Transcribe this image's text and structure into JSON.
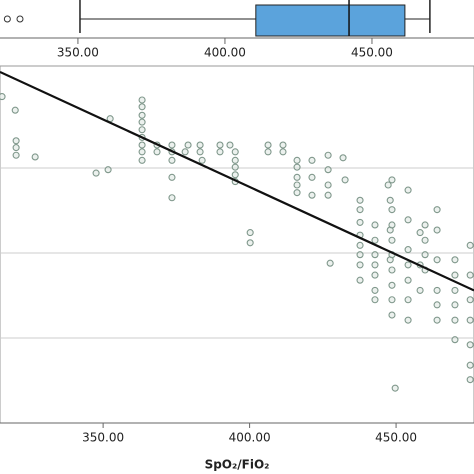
{
  "chart_data": [
    {
      "type": "box",
      "color": "#5ba3dc",
      "whisker_low": 350.7,
      "q1": 410.5,
      "median": 442.2,
      "q3": 461.2,
      "whisker_high": 469.7,
      "outliers": [
        326,
        330.3
      ],
      "xlim": [
        323.5,
        484.7
      ],
      "xticks": [
        {
          "value": 350,
          "label": "350.00"
        },
        {
          "value": 400,
          "label": "400.00"
        },
        {
          "value": 450,
          "label": "450.00"
        }
      ]
    },
    {
      "type": "scatter",
      "xlabel": "SpO₂/FiO₂",
      "xlim": [
        314.8,
        476.6
      ],
      "ylim": [
        0,
        4.2
      ],
      "xticks": [
        {
          "value": 350,
          "label": "350.00"
        },
        {
          "value": 400,
          "label": "400.00"
        },
        {
          "value": 450,
          "label": "450.00"
        }
      ],
      "yticks": [
        1,
        2,
        3
      ],
      "grid": true,
      "series": [
        {
          "color": "#7f978b",
          "x": [
            315.5,
            320.0,
            320.3,
            320.3,
            320.3,
            326.8,
            347.6,
            352.4,
            351.7,
            363.3,
            363.3,
            363.3,
            363.3,
            363.3,
            363.3,
            363.3,
            363.3,
            363.3,
            368.4,
            368.4,
            373.5,
            373.5,
            373.5,
            373.5,
            373.5,
            378.0,
            379.0,
            383.1,
            383.1,
            383.8,
            389.9,
            389.9,
            393.3,
            395.1,
            395.1,
            395.1,
            395.1,
            395.1,
            400.2,
            400.2,
            406.3,
            406.3,
            411.4,
            411.4,
            416.2,
            416.2,
            416.2,
            416.2,
            416.2,
            421.3,
            421.3,
            421.3,
            426.8,
            426.8,
            426.8,
            426.8,
            431.9,
            432.6,
            437.7,
            437.7,
            437.7,
            437.7,
            437.7,
            437.7,
            437.7,
            437.7,
            427.5,
            442.8,
            442.8,
            442.8,
            442.8,
            442.8,
            442.8,
            442.8,
            447.3,
            448.0,
            448.0,
            448.0,
            448.6,
            448.6,
            448.6,
            448.6,
            448.6,
            448.6,
            448.6,
            448.6,
            448.6,
            454.1,
            454.1,
            454.1,
            454.1,
            454.1,
            454.1,
            454.1,
            458.2,
            458.2,
            458.2,
            459.9,
            459.9,
            459.9,
            459.9,
            464.0,
            464.0,
            464.0,
            464.0,
            464.0,
            464.0,
            470.1,
            470.1,
            470.1,
            470.1,
            470.1,
            470.1,
            475.3,
            475.3,
            475.3,
            475.3,
            475.3,
            475.3,
            475.3,
            449.7
          ],
          "y": [
            3.84,
            3.68,
            3.32,
            3.24,
            3.15,
            3.13,
            2.94,
            3.58,
            2.98,
            3.8,
            3.72,
            3.62,
            3.54,
            3.45,
            3.36,
            3.27,
            3.19,
            3.09,
            3.27,
            3.19,
            3.27,
            3.19,
            3.09,
            2.89,
            2.65,
            3.19,
            3.27,
            3.27,
            3.19,
            3.09,
            3.27,
            3.19,
            3.27,
            3.19,
            3.09,
            3.01,
            2.92,
            2.84,
            2.24,
            2.12,
            3.27,
            3.19,
            3.27,
            3.19,
            3.09,
            3.01,
            2.89,
            2.8,
            2.71,
            3.09,
            2.89,
            2.68,
            3.15,
            2.98,
            2.8,
            2.68,
            3.12,
            2.86,
            2.62,
            2.51,
            2.36,
            2.21,
            2.09,
            1.98,
            1.86,
            1.68,
            1.88,
            2.33,
            2.15,
            1.98,
            1.86,
            1.74,
            1.56,
            1.45,
            2.8,
            2.62,
            2.27,
            1.92,
            2.86,
            2.51,
            2.33,
            2.15,
            1.98,
            1.8,
            1.62,
            1.45,
            1.27,
            2.74,
            2.39,
            2.04,
            1.86,
            1.68,
            1.45,
            1.21,
            2.24,
            1.86,
            1.56,
            2.33,
            2.15,
            1.98,
            1.8,
            2.51,
            2.27,
            1.92,
            1.56,
            1.39,
            1.21,
            1.92,
            1.74,
            1.56,
            1.39,
            1.21,
            0.98,
            2.09,
            1.74,
            1.45,
            1.21,
            0.92,
            0.68,
            0.51,
            0.41
          ]
        },
        {
          "type": "line",
          "color": "#111111",
          "x": [
            314.8,
            476.6
          ],
          "y": [
            4.13,
            1.56
          ]
        }
      ]
    }
  ]
}
